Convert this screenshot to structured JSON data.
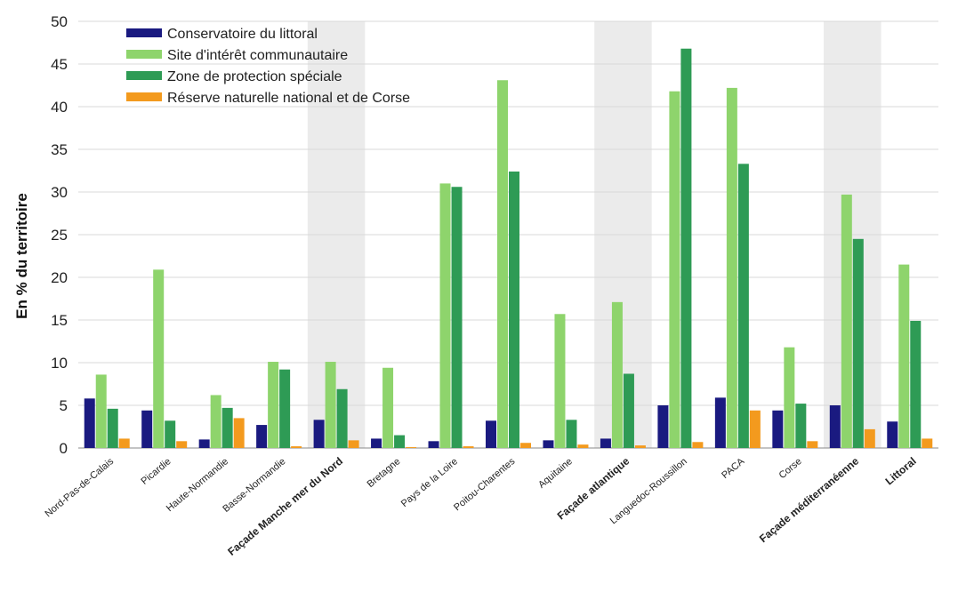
{
  "chart_data": {
    "type": "bar",
    "ylabel": "En % du territoire",
    "xlabel": "",
    "ylim": [
      0,
      50
    ],
    "yticks": [
      0,
      5,
      10,
      15,
      20,
      25,
      30,
      35,
      40,
      45,
      50
    ],
    "grid": true,
    "legend_position": "top-left",
    "categories": [
      "Nord-Pas-de-Calais",
      "Picardie",
      "Haute-Normandie",
      "Basse-Normandie",
      "Façade Manche mer du Nord",
      "Bretagne",
      "Pays de la Loire",
      "Poitou-Charentes",
      "Aquitaine",
      "Façade atlantique",
      "Languedoc-Roussillon",
      "PACA",
      "Corse",
      "Façade méditerranéenne",
      "Littoral"
    ],
    "highlighted_categories": [
      4,
      9,
      13
    ],
    "bold_categories": [
      4,
      9,
      13,
      14
    ],
    "series": [
      {
        "name": "Conservatoire du littoral",
        "color": "#1a1a80",
        "values": [
          5.8,
          4.4,
          1.0,
          2.7,
          3.3,
          1.1,
          0.8,
          3.2,
          0.9,
          1.1,
          5.0,
          5.9,
          4.4,
          5.0,
          3.1
        ]
      },
      {
        "name": "Site d'intérêt communautaire",
        "color": "#8ed46c",
        "values": [
          8.6,
          20.9,
          6.2,
          10.1,
          10.1,
          9.4,
          31.0,
          43.1,
          15.7,
          17.1,
          41.8,
          42.2,
          11.8,
          29.7,
          21.5
        ]
      },
      {
        "name": "Zone de protection spéciale",
        "color": "#2e9b55",
        "values": [
          4.6,
          3.2,
          4.7,
          9.2,
          6.9,
          1.5,
          30.6,
          32.4,
          3.3,
          8.7,
          46.8,
          33.3,
          5.2,
          24.5,
          14.9
        ]
      },
      {
        "name": "Réserve naturelle national et de Corse",
        "color": "#f39a1e",
        "values": [
          1.1,
          0.8,
          3.5,
          0.2,
          0.9,
          0.1,
          0.2,
          0.6,
          0.4,
          0.3,
          0.7,
          4.4,
          0.8,
          2.2,
          1.1
        ]
      }
    ]
  }
}
